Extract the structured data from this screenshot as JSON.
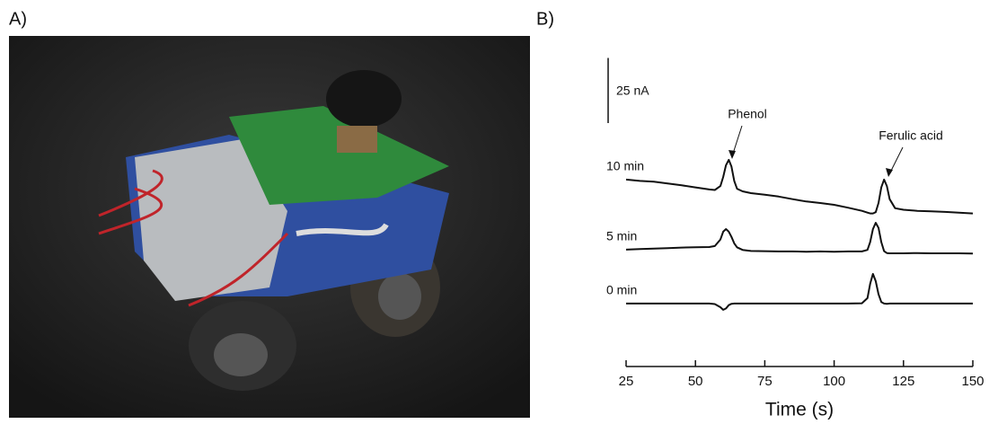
{
  "panel_a": {
    "label": "A)"
  },
  "chart_data": {
    "type": "line",
    "panel_label": "B)",
    "x_label": "Time (s)",
    "x": [
      25,
      30,
      35,
      40,
      45,
      50,
      55,
      57,
      59,
      60,
      61,
      62,
      63,
      64,
      65,
      67,
      70,
      75,
      80,
      85,
      90,
      95,
      100,
      105,
      110,
      112,
      113,
      114,
      115,
      116,
      117,
      118,
      119,
      120,
      122,
      125,
      130,
      135,
      140,
      145,
      150
    ],
    "series": [
      {
        "name": "10 min",
        "color": "#111111",
        "values": [
          69.0,
          68.5,
          68.2,
          67.5,
          66.8,
          66.0,
          65.2,
          65.0,
          66.5,
          70,
          74.5,
          76.6,
          74,
          68.5,
          65.5,
          64.5,
          63.8,
          63.2,
          62.5,
          61.5,
          60.6,
          60,
          59.3,
          58.2,
          57,
          56.3,
          56,
          56,
          56.5,
          60,
          66,
          69,
          66.5,
          61.5,
          58,
          57.4,
          57,
          56.8,
          56.6,
          56.3,
          56.0
        ]
      },
      {
        "name": "5 min",
        "color": "#111111",
        "values": [
          42.1,
          42.3,
          42.5,
          42.7,
          42.9,
          43.0,
          43.1,
          43.5,
          46,
          49,
          50,
          49,
          47,
          44.5,
          43,
          42,
          41.6,
          41.5,
          41.4,
          41.4,
          41.3,
          41.4,
          41.3,
          41.4,
          41.4,
          42,
          45,
          50,
          52.4,
          50.5,
          45,
          41.5,
          40.8,
          40.7,
          40.7,
          40.7,
          40.8,
          40.7,
          40.7,
          40.7,
          40.6
        ]
      },
      {
        "name": "0 min",
        "color": "#111111",
        "values": [
          21.4,
          21.4,
          21.4,
          21.4,
          21.4,
          21.4,
          21.4,
          21.2,
          20,
          19,
          19.5,
          20.8,
          21.3,
          21.4,
          21.4,
          21.4,
          21.4,
          21.4,
          21.4,
          21.4,
          21.4,
          21.4,
          21.4,
          21.4,
          21.5,
          23.5,
          29,
          32.8,
          30,
          25,
          22,
          21.4,
          21.3,
          21.4,
          21.4,
          21.4,
          21.4,
          21.4,
          21.4,
          21.4,
          21.4
        ]
      }
    ],
    "xlim": [
      25,
      150
    ],
    "xticks": [
      25,
      50,
      75,
      100,
      125,
      150
    ],
    "ylim": [
      0,
      120
    ],
    "scale_bar": {
      "value": 25,
      "label": "25 nA"
    },
    "annotations": [
      "Phenol",
      "Ferulic acid"
    ]
  }
}
